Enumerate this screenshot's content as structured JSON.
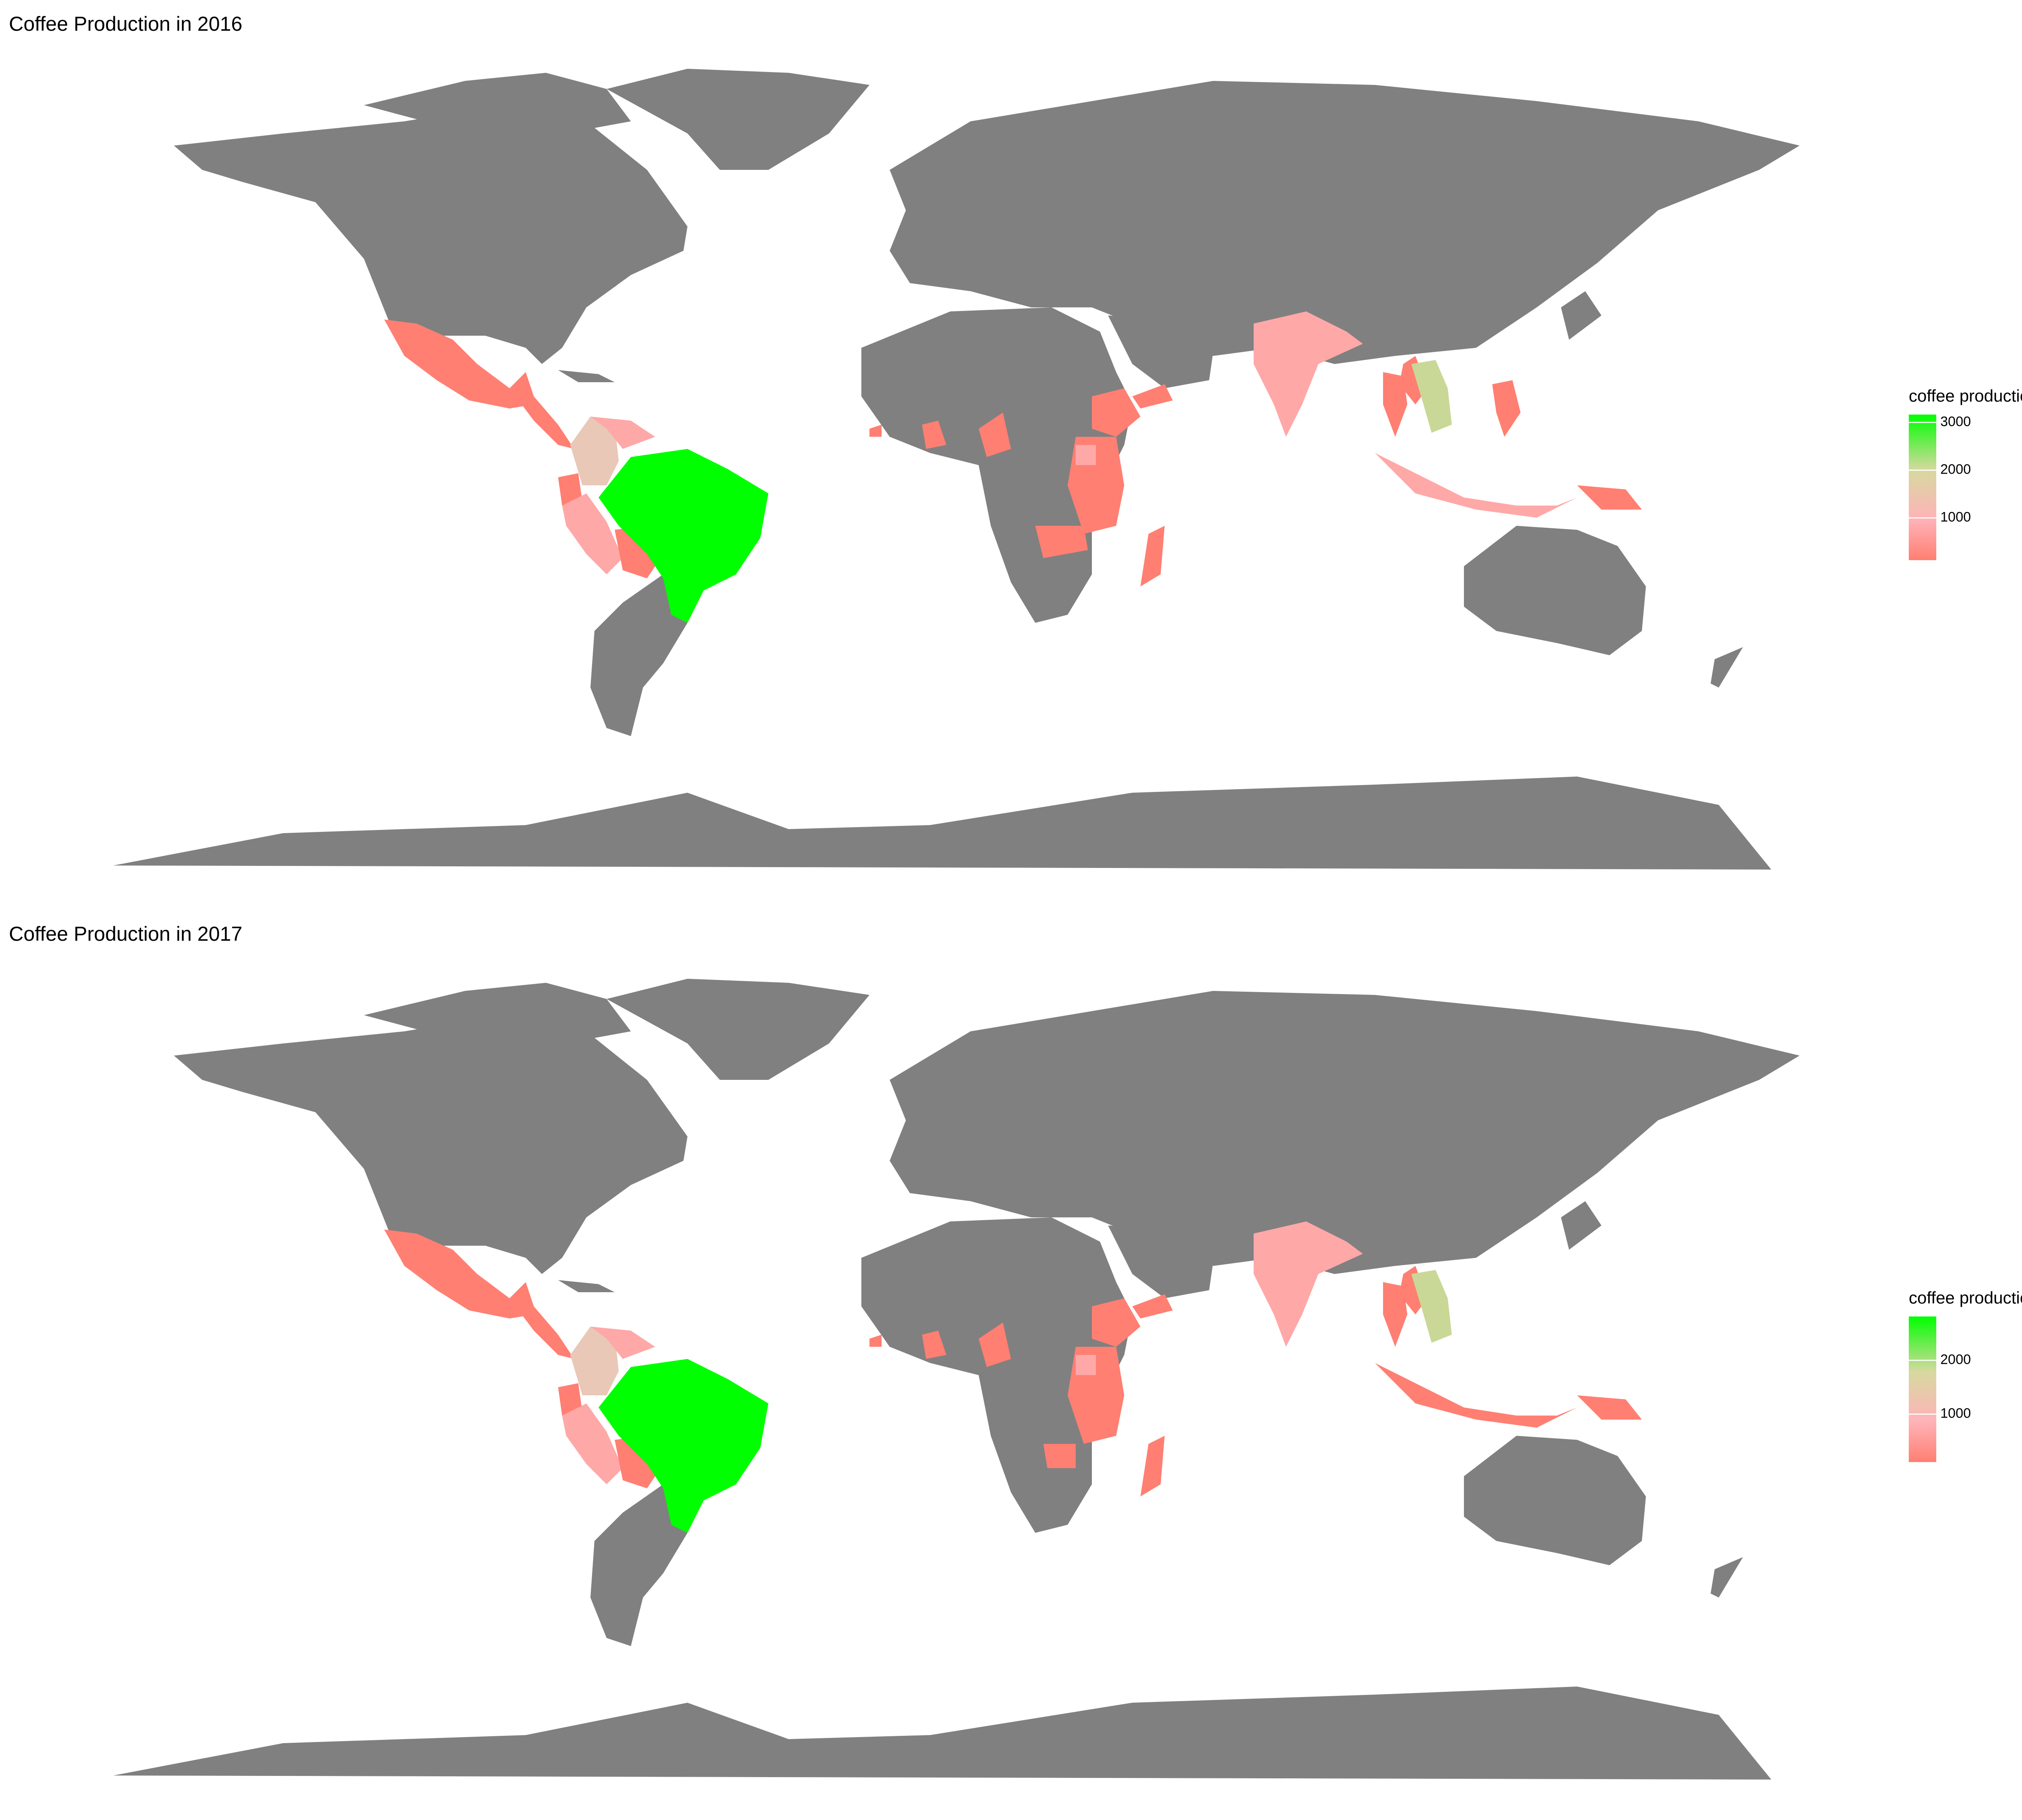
{
  "maps": [
    {
      "id": "panel-2016",
      "title": "Coffee Production in 2016",
      "legend": {
        "title": "coffee production",
        "ticks": [
          "1000",
          "2000",
          "3000"
        ],
        "tick_values": [
          1000,
          2000,
          3000
        ],
        "min": 100,
        "max": 3150,
        "colors": {
          "low": "#ff7f72",
          "mid": "#ffb3b8",
          "midhigh": "#d7d9a0",
          "high": "#00ff00"
        }
      }
    },
    {
      "id": "panel-2017",
      "title": "Coffee Production in 2017",
      "legend": {
        "title": "coffee production",
        "ticks": [
          "1000",
          "2000"
        ],
        "tick_values": [
          1000,
          2000
        ],
        "min": 100,
        "max": 2800,
        "colors": {
          "low": "#ff7f72",
          "mid": "#ffb3b8",
          "midhigh": "#d7d9a0",
          "high": "#00ff00"
        }
      }
    }
  ],
  "colors": {
    "land": "#808080",
    "background": "#ffffff",
    "brazil": "#00ff00",
    "vietnam": "#c9d896",
    "colombia": "#e9c8b8",
    "mid_pink": "#ffa8a8",
    "low_red": "#ff7f72"
  }
}
